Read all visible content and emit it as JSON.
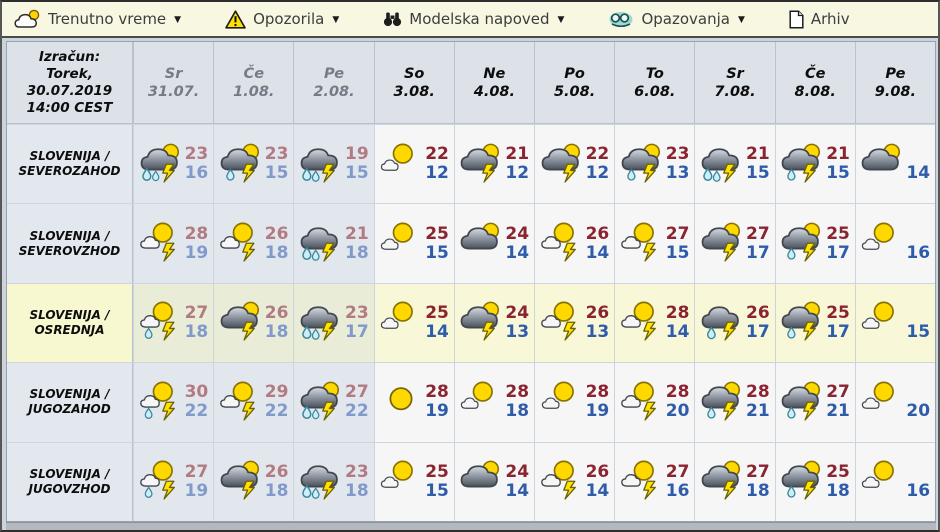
{
  "menu": {
    "items": [
      {
        "label": "Trenutno vreme",
        "icon": "cloud-sun-icon",
        "dropdown": true
      },
      {
        "label": "Opozorila",
        "icon": "warning-icon",
        "dropdown": true
      },
      {
        "label": "Modelska napoved",
        "icon": "binoculars-icon",
        "dropdown": true
      },
      {
        "label": "Opazovanja",
        "icon": "observer-icon",
        "dropdown": true
      },
      {
        "label": "Arhiv",
        "icon": "document-icon",
        "dropdown": false
      }
    ]
  },
  "table": {
    "corner_lines": [
      "Izračun:",
      "Torek,",
      "30.07.2019",
      "14:00 CEST"
    ],
    "columns": [
      {
        "day": "Sr",
        "date": "31.07.",
        "past": true
      },
      {
        "day": "Če",
        "date": "1.08.",
        "past": true
      },
      {
        "day": "Pe",
        "date": "2.08.",
        "past": true
      },
      {
        "day": "So",
        "date": "3.08.",
        "past": false
      },
      {
        "day": "Ne",
        "date": "4.08.",
        "past": false
      },
      {
        "day": "Po",
        "date": "5.08.",
        "past": false
      },
      {
        "day": "To",
        "date": "6.08.",
        "past": false
      },
      {
        "day": "Sr",
        "date": "7.08.",
        "past": false
      },
      {
        "day": "Če",
        "date": "8.08.",
        "past": false
      },
      {
        "day": "Pe",
        "date": "9.08.",
        "past": false
      }
    ],
    "rows": [
      {
        "region_line1": "SLOVENIJA /",
        "region_line2": "SEVEROZAHOD",
        "highlight": false,
        "cells": [
          {
            "icon": "cloud-sun-rain2-bolt",
            "hi": "23",
            "lo": "16"
          },
          {
            "icon": "cloud-sun-rain-bolt",
            "hi": "23",
            "lo": "15"
          },
          {
            "icon": "cloud-rain2-bolt",
            "hi": "19",
            "lo": "15"
          },
          {
            "icon": "partly-sunny",
            "hi": "22",
            "lo": "12"
          },
          {
            "icon": "cloud-sun-bolt",
            "hi": "21",
            "lo": "12"
          },
          {
            "icon": "cloud-sun-bolt",
            "hi": "22",
            "lo": "12"
          },
          {
            "icon": "cloud-sun-rain-bolt",
            "hi": "23",
            "lo": "13"
          },
          {
            "icon": "cloud-rain2-bolt",
            "hi": "21",
            "lo": "15"
          },
          {
            "icon": "cloud-sun-rain-bolt",
            "hi": "21",
            "lo": "15"
          },
          {
            "icon": "cloud-sun",
            "hi": "",
            "lo": "14"
          }
        ]
      },
      {
        "region_line1": "SLOVENIJA /",
        "region_line2": "SEVEROVZHOD",
        "highlight": false,
        "cells": [
          {
            "icon": "sun-cloud-bolt",
            "hi": "28",
            "lo": "19"
          },
          {
            "icon": "sun-cloud-bolt",
            "hi": "26",
            "lo": "18"
          },
          {
            "icon": "cloud-rain2-bolt",
            "hi": "21",
            "lo": "18"
          },
          {
            "icon": "partly-sunny",
            "hi": "25",
            "lo": "15"
          },
          {
            "icon": "cloud-sun",
            "hi": "24",
            "lo": "14"
          },
          {
            "icon": "sun-cloud-bolt",
            "hi": "26",
            "lo": "14"
          },
          {
            "icon": "sun-cloud-bolt",
            "hi": "27",
            "lo": "15"
          },
          {
            "icon": "cloud-sun-bolt",
            "hi": "27",
            "lo": "17"
          },
          {
            "icon": "cloud-sun-rain-bolt",
            "hi": "25",
            "lo": "17"
          },
          {
            "icon": "partly-sunny",
            "hi": "",
            "lo": "16"
          }
        ]
      },
      {
        "region_line1": "SLOVENIJA /",
        "region_line2": "OSREDNJA",
        "highlight": true,
        "cells": [
          {
            "icon": "sun-cloud-rain-bolt",
            "hi": "27",
            "lo": "18"
          },
          {
            "icon": "cloud-sun-bolt",
            "hi": "26",
            "lo": "18"
          },
          {
            "icon": "cloud-rain2-bolt",
            "hi": "23",
            "lo": "17"
          },
          {
            "icon": "partly-sunny",
            "hi": "25",
            "lo": "14"
          },
          {
            "icon": "cloud-sun-bolt",
            "hi": "24",
            "lo": "13"
          },
          {
            "icon": "sun-cloud-bolt",
            "hi": "26",
            "lo": "13"
          },
          {
            "icon": "sun-cloud-bolt",
            "hi": "28",
            "lo": "14"
          },
          {
            "icon": "cloud-rain-bolt",
            "hi": "26",
            "lo": "17"
          },
          {
            "icon": "cloud-sun-rain-bolt",
            "hi": "25",
            "lo": "17"
          },
          {
            "icon": "partly-sunny",
            "hi": "",
            "lo": "15"
          }
        ]
      },
      {
        "region_line1": "SLOVENIJA /",
        "region_line2": "JUGOZAHOD",
        "highlight": false,
        "cells": [
          {
            "icon": "sun-cloud-rain-bolt",
            "hi": "30",
            "lo": "22"
          },
          {
            "icon": "sun-cloud-bolt",
            "hi": "29",
            "lo": "22"
          },
          {
            "icon": "cloud-sun-rain2-bolt",
            "hi": "27",
            "lo": "22"
          },
          {
            "icon": "sunny",
            "hi": "28",
            "lo": "19"
          },
          {
            "icon": "partly-sunny",
            "hi": "28",
            "lo": "18"
          },
          {
            "icon": "partly-sunny",
            "hi": "28",
            "lo": "19"
          },
          {
            "icon": "sun-cloud-bolt",
            "hi": "28",
            "lo": "20"
          },
          {
            "icon": "cloud-sun-rain-bolt",
            "hi": "28",
            "lo": "21"
          },
          {
            "icon": "cloud-sun-rain-bolt",
            "hi": "27",
            "lo": "21"
          },
          {
            "icon": "partly-sunny",
            "hi": "",
            "lo": "20"
          }
        ]
      },
      {
        "region_line1": "SLOVENIJA /",
        "region_line2": "JUGOVZHOD",
        "highlight": false,
        "cells": [
          {
            "icon": "sun-cloud-rain-bolt",
            "hi": "27",
            "lo": "19"
          },
          {
            "icon": "cloud-sun-bolt",
            "hi": "26",
            "lo": "18"
          },
          {
            "icon": "cloud-rain2-bolt",
            "hi": "23",
            "lo": "18"
          },
          {
            "icon": "partly-sunny",
            "hi": "25",
            "lo": "15"
          },
          {
            "icon": "cloud-sun",
            "hi": "24",
            "lo": "14"
          },
          {
            "icon": "sun-cloud-bolt",
            "hi": "26",
            "lo": "14"
          },
          {
            "icon": "sun-cloud-bolt",
            "hi": "27",
            "lo": "16"
          },
          {
            "icon": "cloud-sun-bolt",
            "hi": "27",
            "lo": "18"
          },
          {
            "icon": "cloud-sun-rain-bolt",
            "hi": "25",
            "lo": "18"
          },
          {
            "icon": "partly-sunny",
            "hi": "",
            "lo": "16"
          }
        ]
      }
    ]
  },
  "colors": {
    "high_temp": "#8a2430",
    "low_temp": "#2e5cab",
    "high_temp_past": "#b27a83",
    "low_temp_past": "#8299cc",
    "highlight_row": "#f8f8d8",
    "menu_bg": "#f7f7e2",
    "header_bg": "#dce2e8"
  }
}
